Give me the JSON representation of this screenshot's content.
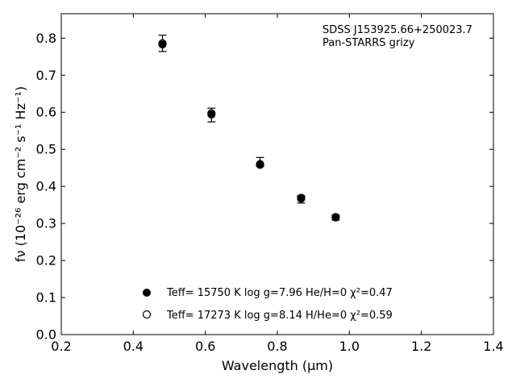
{
  "chart_data": {
    "type": "scatter",
    "annotation_lines": [
      "SDSS J153925.66+250023.7",
      "Pan-STARRS grizy"
    ],
    "xlabel": "Wavelength (μm)",
    "ylabel": "fν (10⁻²⁶ erg cm⁻² s⁻¹ Hz⁻¹)",
    "xlim": [
      0.2,
      1.4
    ],
    "ylim": [
      0.0,
      0.866
    ],
    "xticks": [
      "0.2",
      "0.4",
      "0.6",
      "0.8",
      "1.0",
      "1.2",
      "1.4"
    ],
    "yticks": [
      "0.0",
      "0.1",
      "0.2",
      "0.3",
      "0.4",
      "0.5",
      "0.6",
      "0.7",
      "0.8"
    ],
    "grid": false,
    "legend_position": "bottom-left",
    "observed": {
      "x": [
        0.481,
        0.617,
        0.752,
        0.866,
        0.962
      ],
      "y": [
        0.786,
        0.597,
        0.46,
        0.369,
        0.317
      ],
      "err_low": [
        0.022,
        0.023,
        0.006,
        0.014,
        0.008
      ],
      "err_high": [
        0.022,
        0.014,
        0.018,
        0.006,
        0.006
      ]
    },
    "model_filled": {
      "x": [
        0.481,
        0.617,
        0.752,
        0.866,
        0.962
      ],
      "y": [
        0.783,
        0.594,
        0.458,
        0.367,
        0.316
      ]
    },
    "legend": [
      {
        "marker": "filled",
        "label": "Teff= 15750 K  log g=7.96  He/H=0  χ²=0.47"
      },
      {
        "marker": "open",
        "label": "Teff= 17273 K  log g=8.14  H/He=0  χ²=0.59"
      }
    ]
  }
}
